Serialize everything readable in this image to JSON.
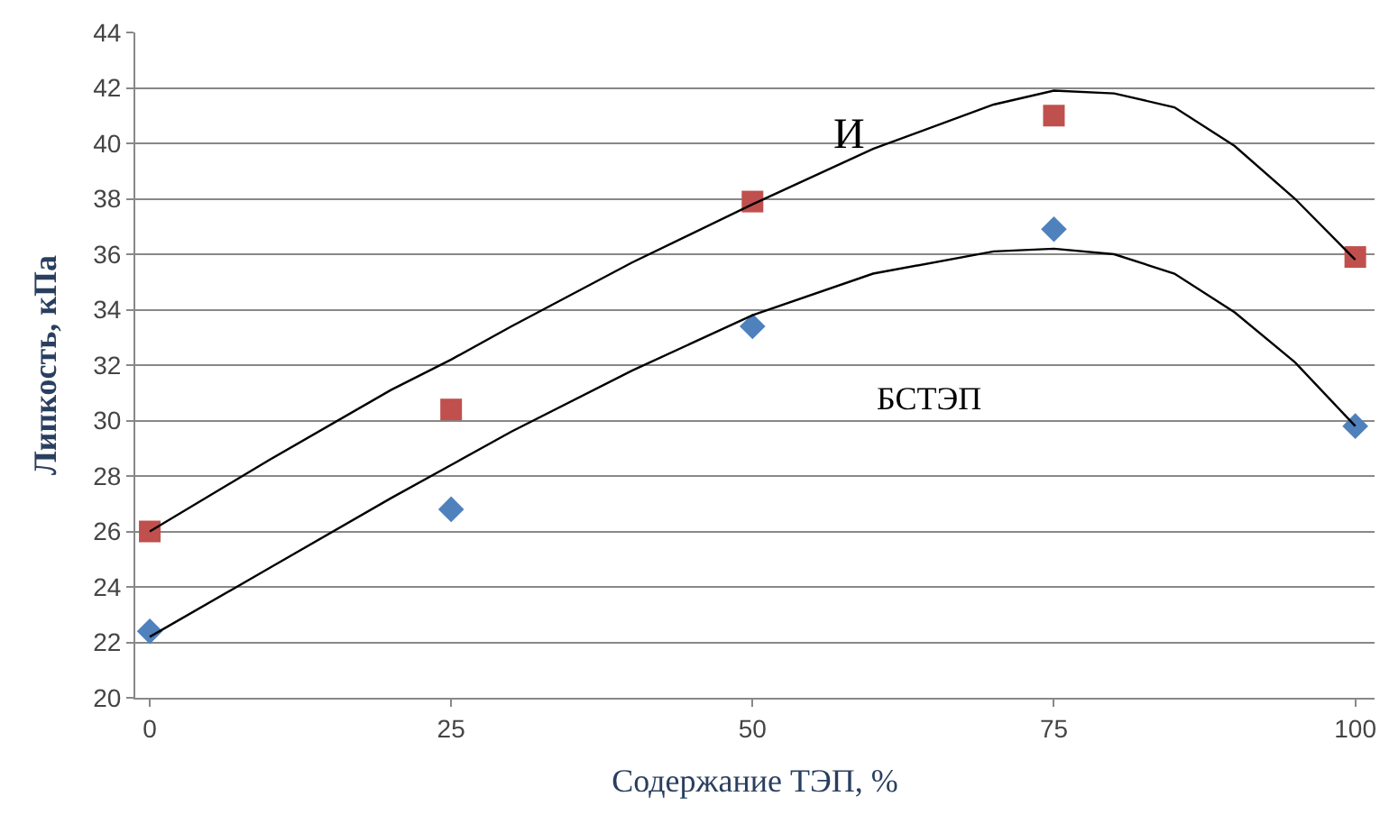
{
  "chart_data": {
    "type": "scatter",
    "xlabel": "Содержание ТЭП, %",
    "ylabel": "Липкость, кПа",
    "x": [
      0,
      25,
      50,
      75,
      100
    ],
    "series": [
      {
        "color": "#c0504d",
        "marker": "square",
        "values": [
          26.0,
          30.4,
          37.9,
          41.0,
          35.9
        ]
      },
      {
        "color": "#4f81bd",
        "marker": "diamond",
        "values": [
          22.4,
          26.8,
          33.4,
          36.9,
          29.8
        ]
      },
      {
        "type": "line",
        "color": "#000000",
        "marker": "none",
        "x": [
          0,
          10,
          20,
          25,
          30,
          40,
          50,
          60,
          70,
          75,
          80,
          85,
          90,
          95,
          100
        ],
        "values": [
          26.0,
          28.6,
          31.1,
          32.2,
          33.4,
          35.7,
          37.8,
          39.8,
          41.4,
          41.9,
          41.8,
          41.3,
          39.9,
          38.0,
          35.8
        ]
      },
      {
        "type": "line",
        "color": "#000000",
        "marker": "none",
        "x": [
          0,
          10,
          20,
          25,
          30,
          40,
          50,
          60,
          70,
          75,
          80,
          85,
          90,
          95,
          100
        ],
        "values": [
          22.2,
          24.7,
          27.2,
          28.4,
          29.6,
          31.8,
          33.8,
          35.3,
          36.1,
          36.2,
          36.0,
          35.3,
          33.9,
          32.1,
          29.8
        ]
      }
    ],
    "annotations": [
      "И",
      "БСТЭП"
    ],
    "xlim": [
      -1.2,
      101.6
    ],
    "xticks": [
      0,
      25,
      50,
      75,
      100
    ],
    "ylim": [
      20,
      44
    ],
    "yticks": [
      20,
      22,
      24,
      26,
      28,
      30,
      32,
      34,
      36,
      38,
      40,
      42,
      44
    ],
    "grid": "y"
  }
}
